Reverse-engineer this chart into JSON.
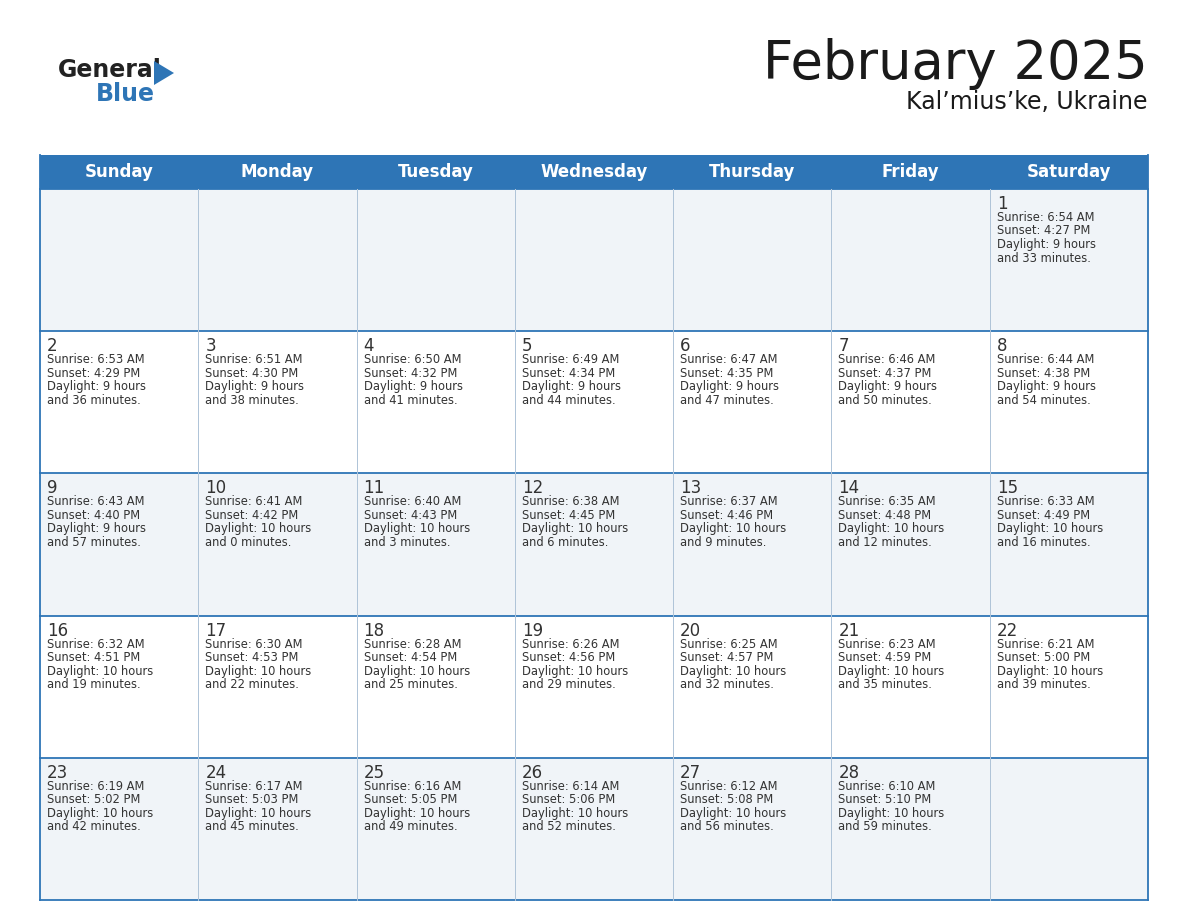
{
  "title": "February 2025",
  "subtitle": "Kal’mius’ke, Ukraine",
  "header_bg": "#2E75B6",
  "header_text_color": "#FFFFFF",
  "cell_bg_odd": "#FFFFFF",
  "cell_bg_even": "#F0F4F8",
  "border_color_strong": "#2E75B6",
  "border_color_light": "#B0C4D8",
  "text_color": "#333333",
  "days_of_week": [
    "Sunday",
    "Monday",
    "Tuesday",
    "Wednesday",
    "Thursday",
    "Friday",
    "Saturday"
  ],
  "calendar_data": [
    [
      null,
      null,
      null,
      null,
      null,
      null,
      {
        "day": 1,
        "sunrise": "6:54 AM",
        "sunset": "4:27 PM",
        "daylight1": "9 hours",
        "daylight2": "and 33 minutes."
      }
    ],
    [
      {
        "day": 2,
        "sunrise": "6:53 AM",
        "sunset": "4:29 PM",
        "daylight1": "9 hours",
        "daylight2": "and 36 minutes."
      },
      {
        "day": 3,
        "sunrise": "6:51 AM",
        "sunset": "4:30 PM",
        "daylight1": "9 hours",
        "daylight2": "and 38 minutes."
      },
      {
        "day": 4,
        "sunrise": "6:50 AM",
        "sunset": "4:32 PM",
        "daylight1": "9 hours",
        "daylight2": "and 41 minutes."
      },
      {
        "day": 5,
        "sunrise": "6:49 AM",
        "sunset": "4:34 PM",
        "daylight1": "9 hours",
        "daylight2": "and 44 minutes."
      },
      {
        "day": 6,
        "sunrise": "6:47 AM",
        "sunset": "4:35 PM",
        "daylight1": "9 hours",
        "daylight2": "and 47 minutes."
      },
      {
        "day": 7,
        "sunrise": "6:46 AM",
        "sunset": "4:37 PM",
        "daylight1": "9 hours",
        "daylight2": "and 50 minutes."
      },
      {
        "day": 8,
        "sunrise": "6:44 AM",
        "sunset": "4:38 PM",
        "daylight1": "9 hours",
        "daylight2": "and 54 minutes."
      }
    ],
    [
      {
        "day": 9,
        "sunrise": "6:43 AM",
        "sunset": "4:40 PM",
        "daylight1": "9 hours",
        "daylight2": "and 57 minutes."
      },
      {
        "day": 10,
        "sunrise": "6:41 AM",
        "sunset": "4:42 PM",
        "daylight1": "10 hours",
        "daylight2": "and 0 minutes."
      },
      {
        "day": 11,
        "sunrise": "6:40 AM",
        "sunset": "4:43 PM",
        "daylight1": "10 hours",
        "daylight2": "and 3 minutes."
      },
      {
        "day": 12,
        "sunrise": "6:38 AM",
        "sunset": "4:45 PM",
        "daylight1": "10 hours",
        "daylight2": "and 6 minutes."
      },
      {
        "day": 13,
        "sunrise": "6:37 AM",
        "sunset": "4:46 PM",
        "daylight1": "10 hours",
        "daylight2": "and 9 minutes."
      },
      {
        "day": 14,
        "sunrise": "6:35 AM",
        "sunset": "4:48 PM",
        "daylight1": "10 hours",
        "daylight2": "and 12 minutes."
      },
      {
        "day": 15,
        "sunrise": "6:33 AM",
        "sunset": "4:49 PM",
        "daylight1": "10 hours",
        "daylight2": "and 16 minutes."
      }
    ],
    [
      {
        "day": 16,
        "sunrise": "6:32 AM",
        "sunset": "4:51 PM",
        "daylight1": "10 hours",
        "daylight2": "and 19 minutes."
      },
      {
        "day": 17,
        "sunrise": "6:30 AM",
        "sunset": "4:53 PM",
        "daylight1": "10 hours",
        "daylight2": "and 22 minutes."
      },
      {
        "day": 18,
        "sunrise": "6:28 AM",
        "sunset": "4:54 PM",
        "daylight1": "10 hours",
        "daylight2": "and 25 minutes."
      },
      {
        "day": 19,
        "sunrise": "6:26 AM",
        "sunset": "4:56 PM",
        "daylight1": "10 hours",
        "daylight2": "and 29 minutes."
      },
      {
        "day": 20,
        "sunrise": "6:25 AM",
        "sunset": "4:57 PM",
        "daylight1": "10 hours",
        "daylight2": "and 32 minutes."
      },
      {
        "day": 21,
        "sunrise": "6:23 AM",
        "sunset": "4:59 PM",
        "daylight1": "10 hours",
        "daylight2": "and 35 minutes."
      },
      {
        "day": 22,
        "sunrise": "6:21 AM",
        "sunset": "5:00 PM",
        "daylight1": "10 hours",
        "daylight2": "and 39 minutes."
      }
    ],
    [
      {
        "day": 23,
        "sunrise": "6:19 AM",
        "sunset": "5:02 PM",
        "daylight1": "10 hours",
        "daylight2": "and 42 minutes."
      },
      {
        "day": 24,
        "sunrise": "6:17 AM",
        "sunset": "5:03 PM",
        "daylight1": "10 hours",
        "daylight2": "and 45 minutes."
      },
      {
        "day": 25,
        "sunrise": "6:16 AM",
        "sunset": "5:05 PM",
        "daylight1": "10 hours",
        "daylight2": "and 49 minutes."
      },
      {
        "day": 26,
        "sunrise": "6:14 AM",
        "sunset": "5:06 PM",
        "daylight1": "10 hours",
        "daylight2": "and 52 minutes."
      },
      {
        "day": 27,
        "sunrise": "6:12 AM",
        "sunset": "5:08 PM",
        "daylight1": "10 hours",
        "daylight2": "and 56 minutes."
      },
      {
        "day": 28,
        "sunrise": "6:10 AM",
        "sunset": "5:10 PM",
        "daylight1": "10 hours",
        "daylight2": "and 59 minutes."
      },
      null
    ]
  ]
}
